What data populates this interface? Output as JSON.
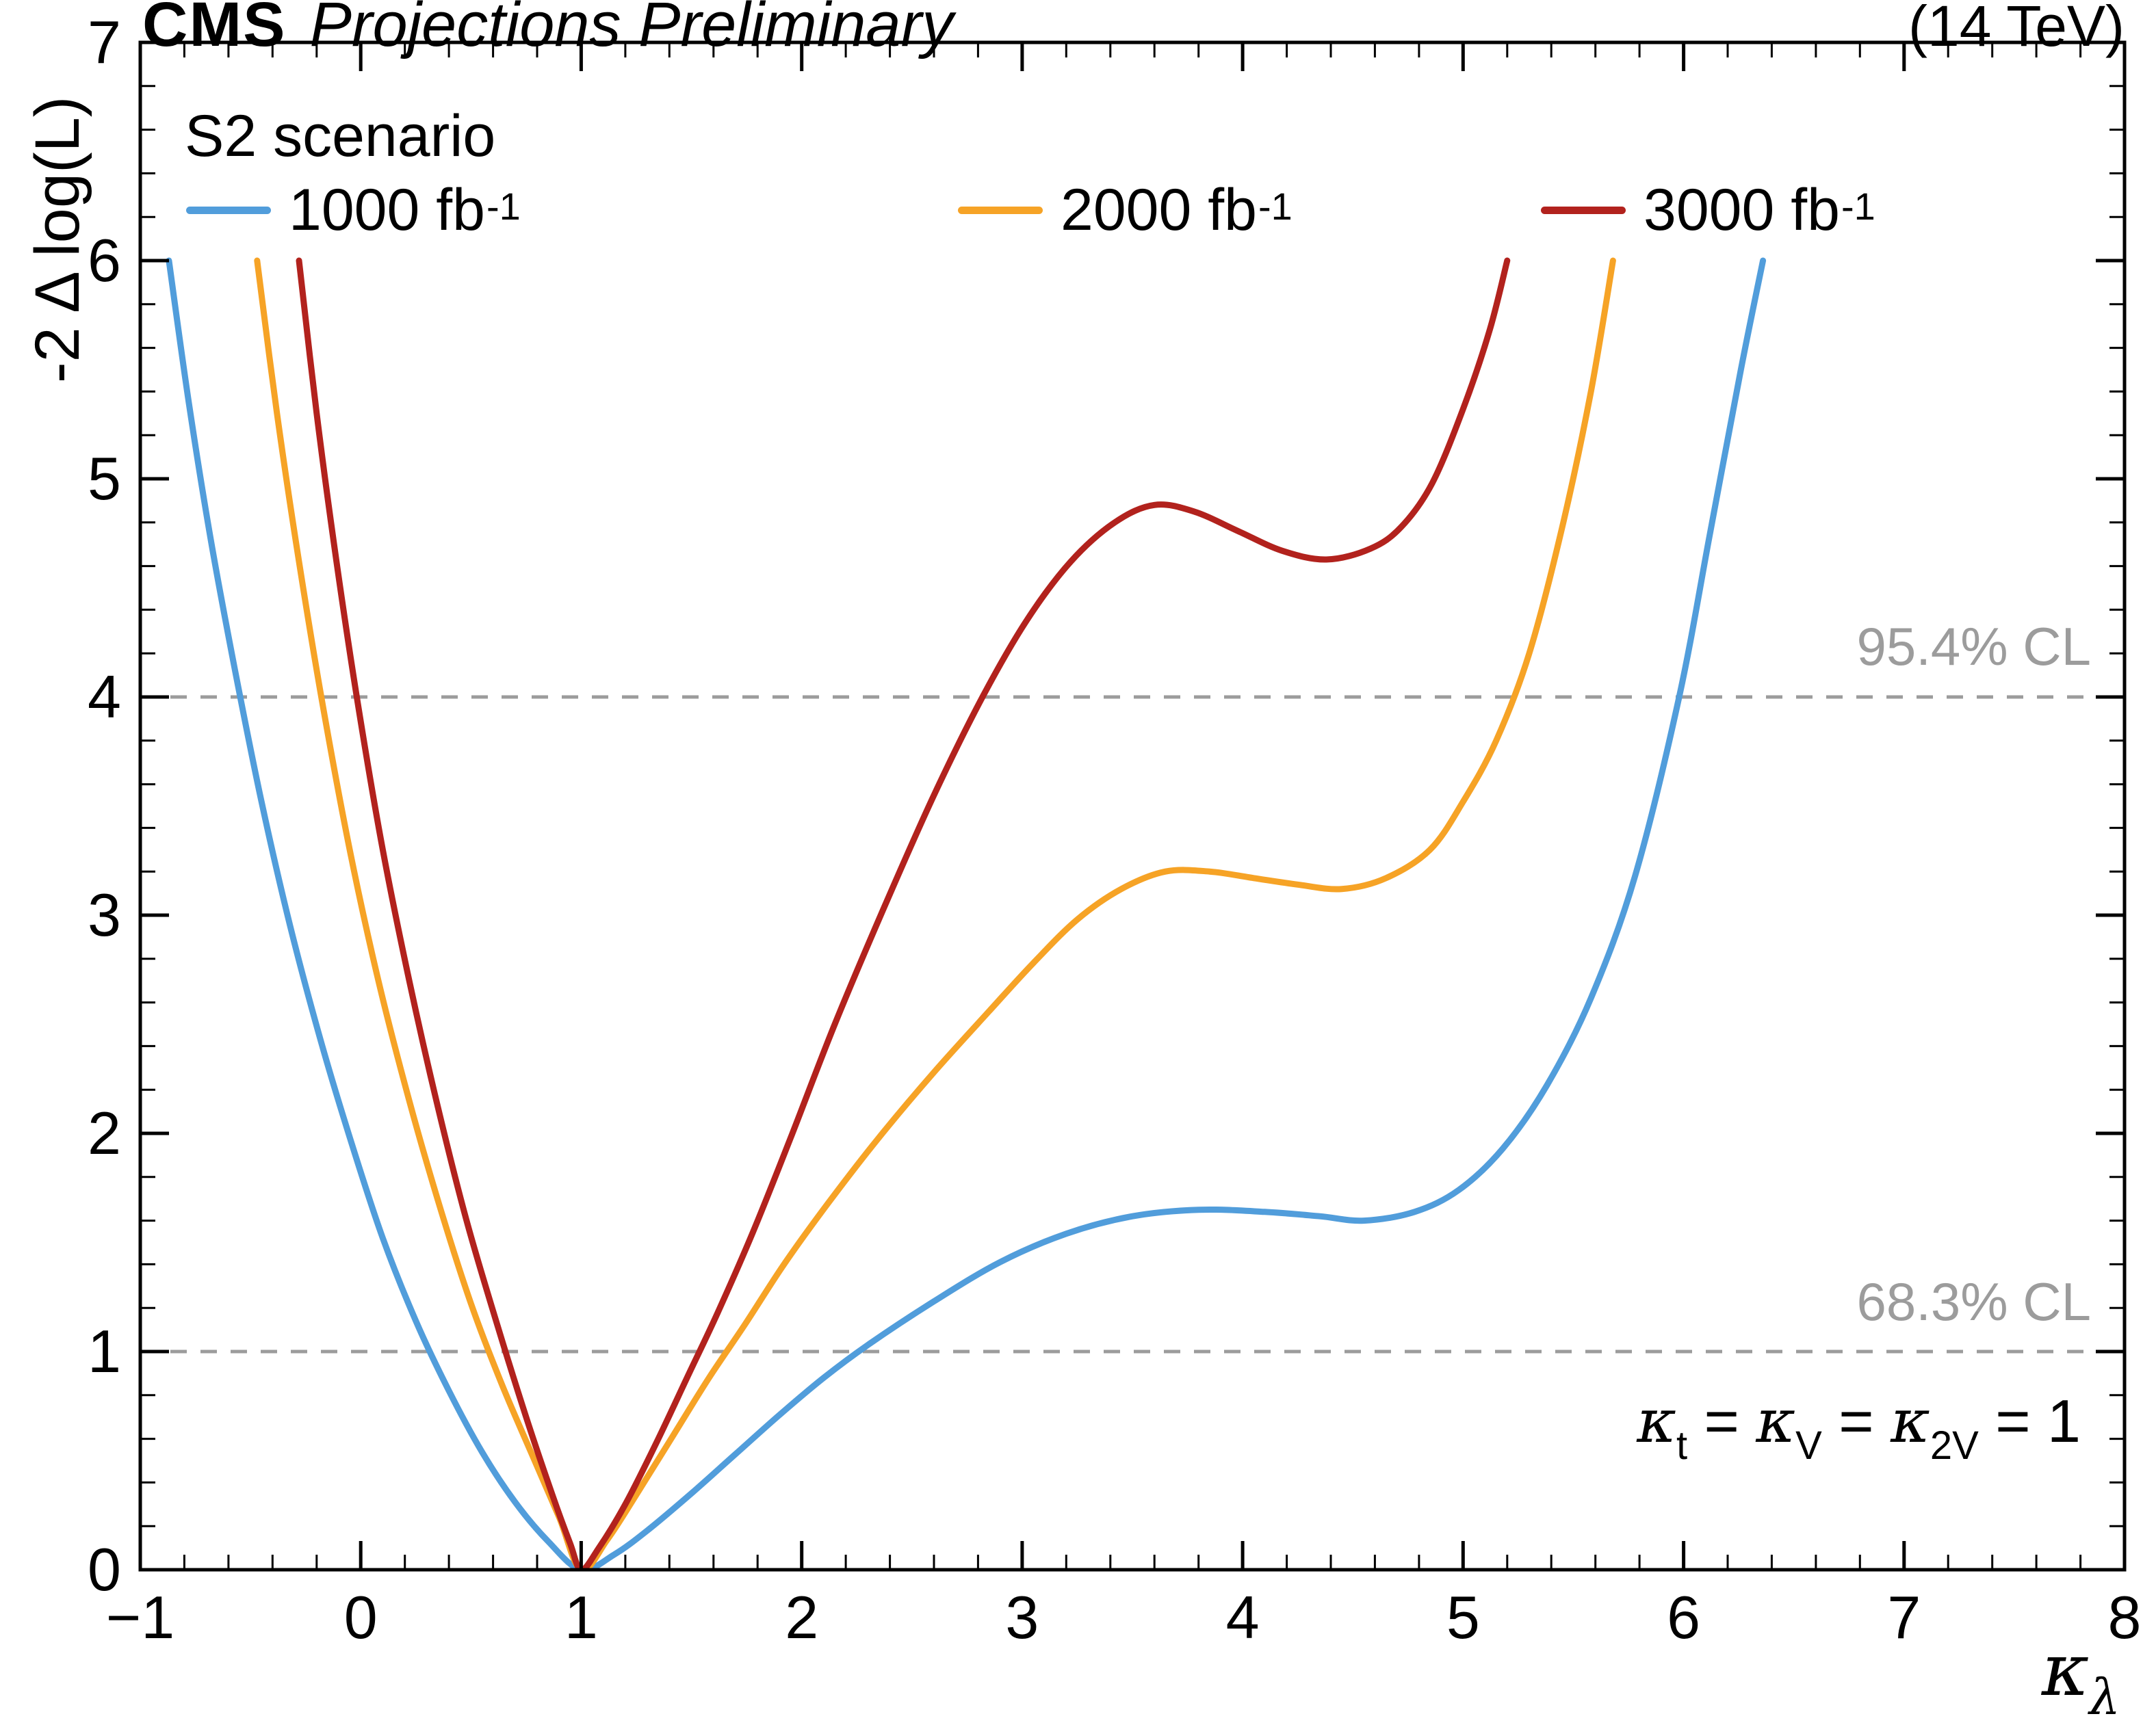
{
  "header": {
    "experiment": "CMS",
    "label": "Projections Preliminary",
    "energy": "(14 TeV)"
  },
  "chart_data": {
    "type": "line",
    "title": "",
    "xlabel": {
      "base": "κ",
      "sub": "λ"
    },
    "ylabel": "-2 Δ log(L)",
    "xlim": [
      -1,
      8
    ],
    "ylim": [
      0,
      7
    ],
    "grid": false,
    "legend_position": "top-inside",
    "legend_title": "S2 scenario",
    "x_ticks": {
      "values": [
        -1,
        0,
        1,
        2,
        3,
        4,
        5,
        6,
        7,
        8
      ],
      "labels": [
        "−1",
        "0",
        "1",
        "2",
        "3",
        "4",
        "5",
        "6",
        "7",
        "8"
      ]
    },
    "y_ticks": {
      "values": [
        0,
        1,
        2,
        3,
        4,
        5,
        6,
        7
      ],
      "labels": [
        "0",
        "1",
        "2",
        "3",
        "4",
        "5",
        "6",
        "7"
      ]
    },
    "minor_x_step": 0.2,
    "minor_y_step": 0.2,
    "cl_color": "#9c9c9c",
    "cl_lines": [
      {
        "y": 1,
        "label": "68.3% CL"
      },
      {
        "y": 4,
        "label": "95.4% CL"
      }
    ],
    "series": [
      {
        "label": "1000 fb",
        "sup": "-1",
        "color": "#519ddb",
        "points": [
          [
            -0.87,
            6.0
          ],
          [
            -0.78,
            5.35
          ],
          [
            -0.68,
            4.72
          ],
          [
            -0.57,
            4.12
          ],
          [
            -0.45,
            3.52
          ],
          [
            -0.32,
            2.95
          ],
          [
            -0.18,
            2.42
          ],
          [
            -0.04,
            1.95
          ],
          [
            0.1,
            1.52
          ],
          [
            0.25,
            1.14
          ],
          [
            0.4,
            0.82
          ],
          [
            0.55,
            0.54
          ],
          [
            0.7,
            0.31
          ],
          [
            0.85,
            0.13
          ],
          [
            1.0,
            0.0
          ],
          [
            1.15,
            0.07
          ],
          [
            1.3,
            0.18
          ],
          [
            1.5,
            0.35
          ],
          [
            1.7,
            0.53
          ],
          [
            1.9,
            0.71
          ],
          [
            2.1,
            0.88
          ],
          [
            2.3,
            1.03
          ],
          [
            2.6,
            1.23
          ],
          [
            2.9,
            1.41
          ],
          [
            3.2,
            1.54
          ],
          [
            3.5,
            1.62
          ],
          [
            3.8,
            1.65
          ],
          [
            4.1,
            1.64
          ],
          [
            4.35,
            1.62
          ],
          [
            4.55,
            1.6
          ],
          [
            4.78,
            1.64
          ],
          [
            4.98,
            1.74
          ],
          [
            5.18,
            1.93
          ],
          [
            5.38,
            2.22
          ],
          [
            5.58,
            2.62
          ],
          [
            5.78,
            3.18
          ],
          [
            5.98,
            4.0
          ],
          [
            6.12,
            4.75
          ],
          [
            6.26,
            5.5
          ],
          [
            6.36,
            6.0
          ]
        ]
      },
      {
        "label": "2000 fb",
        "sup": "-1",
        "color": "#f6a326",
        "points": [
          [
            -0.47,
            6.0
          ],
          [
            -0.38,
            5.3
          ],
          [
            -0.28,
            4.62
          ],
          [
            -0.17,
            3.95
          ],
          [
            -0.05,
            3.3
          ],
          [
            0.08,
            2.7
          ],
          [
            0.22,
            2.15
          ],
          [
            0.36,
            1.66
          ],
          [
            0.5,
            1.22
          ],
          [
            0.64,
            0.85
          ],
          [
            0.78,
            0.52
          ],
          [
            0.9,
            0.24
          ],
          [
            1.0,
            0.0
          ],
          [
            1.12,
            0.14
          ],
          [
            1.26,
            0.36
          ],
          [
            1.42,
            0.62
          ],
          [
            1.58,
            0.88
          ],
          [
            1.74,
            1.12
          ],
          [
            1.92,
            1.4
          ],
          [
            2.12,
            1.68
          ],
          [
            2.35,
            1.98
          ],
          [
            2.6,
            2.28
          ],
          [
            2.85,
            2.56
          ],
          [
            3.05,
            2.78
          ],
          [
            3.25,
            2.98
          ],
          [
            3.45,
            3.12
          ],
          [
            3.65,
            3.2
          ],
          [
            3.85,
            3.2
          ],
          [
            4.05,
            3.17
          ],
          [
            4.25,
            3.14
          ],
          [
            4.45,
            3.12
          ],
          [
            4.65,
            3.17
          ],
          [
            4.85,
            3.3
          ],
          [
            5.0,
            3.52
          ],
          [
            5.15,
            3.8
          ],
          [
            5.3,
            4.2
          ],
          [
            5.45,
            4.78
          ],
          [
            5.58,
            5.4
          ],
          [
            5.68,
            6.0
          ]
        ]
      },
      {
        "label": "3000 fb",
        "sup": "-1",
        "color": "#b2221d",
        "points": [
          [
            -0.28,
            6.0
          ],
          [
            -0.2,
            5.3
          ],
          [
            -0.11,
            4.62
          ],
          [
            -0.01,
            3.95
          ],
          [
            0.1,
            3.3
          ],
          [
            0.22,
            2.7
          ],
          [
            0.35,
            2.12
          ],
          [
            0.48,
            1.6
          ],
          [
            0.62,
            1.12
          ],
          [
            0.75,
            0.7
          ],
          [
            0.87,
            0.34
          ],
          [
            0.95,
            0.12
          ],
          [
            1.0,
            0.0
          ],
          [
            1.08,
            0.1
          ],
          [
            1.2,
            0.3
          ],
          [
            1.34,
            0.58
          ],
          [
            1.48,
            0.88
          ],
          [
            1.62,
            1.18
          ],
          [
            1.78,
            1.55
          ],
          [
            1.95,
            1.98
          ],
          [
            2.15,
            2.5
          ],
          [
            2.38,
            3.05
          ],
          [
            2.6,
            3.55
          ],
          [
            2.82,
            4.0
          ],
          [
            3.02,
            4.35
          ],
          [
            3.22,
            4.62
          ],
          [
            3.42,
            4.8
          ],
          [
            3.6,
            4.88
          ],
          [
            3.78,
            4.85
          ],
          [
            3.98,
            4.76
          ],
          [
            4.18,
            4.67
          ],
          [
            4.38,
            4.63
          ],
          [
            4.58,
            4.68
          ],
          [
            4.72,
            4.78
          ],
          [
            4.86,
            4.98
          ],
          [
            5.0,
            5.32
          ],
          [
            5.12,
            5.68
          ],
          [
            5.2,
            6.0
          ]
        ]
      }
    ],
    "annotation": {
      "parts": [
        {
          "pre": "",
          "k": "κ",
          "sub": "t"
        },
        {
          "pre": " = ",
          "k": "κ",
          "sub": "V"
        },
        {
          "pre": " = ",
          "k": "κ",
          "sub": "2V"
        }
      ],
      "suffix": " = 1"
    }
  }
}
